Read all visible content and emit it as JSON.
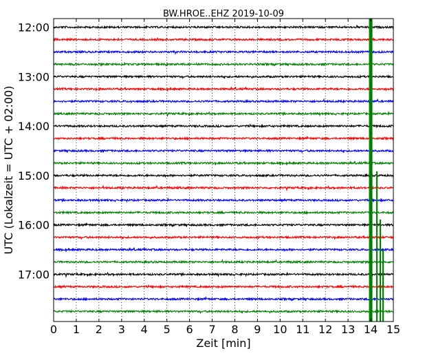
{
  "chart_data": {
    "type": "line",
    "title": "BW.HROE..EHZ 2019-10-09",
    "xlabel": "Zeit  [min]",
    "ylabel": "UTC (Lokalzeit = UTC + 02:00)",
    "xlim": [
      0,
      15
    ],
    "x_ticks": [
      0,
      1,
      2,
      3,
      4,
      5,
      6,
      7,
      8,
      9,
      10,
      11,
      12,
      13,
      14,
      15
    ],
    "x_tick_labels": [
      "0",
      "1",
      "2",
      "3",
      "4",
      "5",
      "6",
      "7",
      "8",
      "9",
      "10",
      "11",
      "12",
      "13",
      "14",
      "15"
    ],
    "y_ticks": [
      "12:00",
      "13:00",
      "14:00",
      "15:00",
      "16:00",
      "17:00"
    ],
    "grid": true,
    "trace_colors": [
      "#000000",
      "#ff0000",
      "#0000ff",
      "#008000"
    ],
    "series": [
      {
        "start": "12:00",
        "color": "#000000"
      },
      {
        "start": "12:15",
        "color": "#ff0000"
      },
      {
        "start": "12:30",
        "color": "#0000ff"
      },
      {
        "start": "12:45",
        "color": "#008000"
      },
      {
        "start": "13:00",
        "color": "#000000"
      },
      {
        "start": "13:15",
        "color": "#ff0000"
      },
      {
        "start": "13:30",
        "color": "#0000ff"
      },
      {
        "start": "13:45",
        "color": "#008000"
      },
      {
        "start": "14:00",
        "color": "#000000"
      },
      {
        "start": "14:15",
        "color": "#ff0000"
      },
      {
        "start": "14:30",
        "color": "#0000ff"
      },
      {
        "start": "14:45",
        "color": "#008000"
      },
      {
        "start": "15:00",
        "color": "#000000"
      },
      {
        "start": "15:15",
        "color": "#ff0000"
      },
      {
        "start": "15:30",
        "color": "#0000ff"
      },
      {
        "start": "15:45",
        "color": "#008000"
      },
      {
        "start": "16:00",
        "color": "#000000"
      },
      {
        "start": "16:15",
        "color": "#ff0000"
      },
      {
        "start": "16:30",
        "color": "#0000ff"
      },
      {
        "start": "16:45",
        "color": "#008000"
      },
      {
        "start": "17:00",
        "color": "#000000"
      },
      {
        "start": "17:15",
        "color": "#ff0000"
      },
      {
        "start": "17:30",
        "color": "#0000ff"
      },
      {
        "start": "17:45",
        "color": "#008000"
      }
    ],
    "event": {
      "start_minute": 14.0,
      "color": "#008000"
    }
  }
}
